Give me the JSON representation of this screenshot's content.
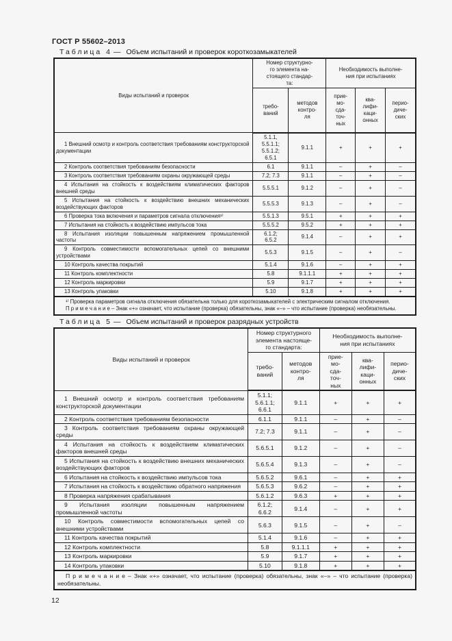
{
  "page": {
    "doc_code": "ГОСТ Р 55602–2013",
    "page_number": "12"
  },
  "table4": {
    "caption": {
      "label": "Таблица 4",
      "dash": "—",
      "title": "Объем испытаний и проверок короткозамыкателей"
    },
    "header": {
      "kinds": "Виды испытаний и проверок",
      "element_group": "Номер структурно-\nго элемента на-\nстоящего стандар-\nта:",
      "necessity_group": "Необходимость выполне-\nния при испытаниях",
      "req": "требо-\nваний",
      "method": "методов\nконтро-\nля",
      "acceptance": "прие-\nмо-\nсда-\nточ-\nных",
      "qualification": "ква-\nлифи-\nкаци-\nонных",
      "periodic": "перио-\nдиче-\nских"
    },
    "rows": [
      {
        "name": "1 Внешний осмотр и контроль соответствия требованиям конструкторской документации",
        "req": "5.1.1,\n5.5.1.1;\n5.5.1.2;\n6.5.1",
        "method": "9.1.1",
        "acc": "+",
        "qual": "+",
        "per": "+"
      },
      {
        "name": "2 Контроль соответствия требованиям безопасности",
        "req": "6.1",
        "method": "9.1.1",
        "acc": "–",
        "qual": "+",
        "per": "–"
      },
      {
        "name": "3 Контроль соответствия требованиям охраны окружающей среды",
        "req": "7.2; 7.3",
        "method": "9.1.1",
        "acc": "–",
        "qual": "+",
        "per": "–"
      },
      {
        "name": "4 Испытания на стойкость к воздействиям климатических факторов внешней среды",
        "req": "5.5.5.1",
        "method": "9.1.2",
        "acc": "–",
        "qual": "+",
        "per": "–"
      },
      {
        "name": "5 Испытания на стойкость к воздействию внешних механических воздействующих факторов",
        "req": "5.5.5.3",
        "method": "9.1.3",
        "acc": "–",
        "qual": "+",
        "per": "–"
      },
      {
        "name": "6 Проверка тока включения и параметров сигнала отключения¹⁾",
        "req": "5.5.1.3",
        "method": "9.5.1",
        "acc": "+",
        "qual": "+",
        "per": "+"
      },
      {
        "name": "7 Испытания на стойкость к воздействию импульсов тока",
        "req": "5.5.5.2",
        "method": "9.5.2",
        "acc": "+",
        "qual": "+",
        "per": "+"
      },
      {
        "name": "8 Испытания изоляции повышенным напряжением промышленной частоты",
        "req": "6.1.2;\n6.5.2",
        "method": "9.1.4",
        "acc": "–",
        "qual": "+",
        "per": "+"
      },
      {
        "name": "9 Контроль совместимости вспомогательных цепей со внешними устройствами",
        "req": "5.5.3",
        "method": "9.1.5",
        "acc": "–",
        "qual": "+",
        "per": "–"
      },
      {
        "name": "10 Контроль качества покрытий",
        "req": "5.1.4",
        "method": "9.1.6",
        "acc": "–",
        "qual": "+",
        "per": "+"
      },
      {
        "name": "11 Контроль комплектности",
        "req": "5.8",
        "method": "9.1.1.1",
        "acc": "+",
        "qual": "+",
        "per": "+"
      },
      {
        "name": "12 Контроль маркировки",
        "req": "5.9",
        "method": "9.1.7",
        "acc": "+",
        "qual": "+",
        "per": "+"
      },
      {
        "name": "13 Контроль упаковки",
        "req": "5.10",
        "method": "9.1.8",
        "acc": "+",
        "qual": "+",
        "per": "+"
      }
    ],
    "footnote": "¹⁾ Проверка параметров сигнала отключения обязательна только для короткозамыкателей с электрическим сигналом отключения.",
    "note": "П р и м е ч а н и е  –  Знак «+» означает, что испытание (проверка) обязательны, знак «–» – что испытание (проверка) необязательны."
  },
  "table5": {
    "caption": {
      "label": "Таблица 5",
      "dash": "—",
      "title": "Объем испытаний и проверок разрядных устройств"
    },
    "header": {
      "kinds": "Виды испытаний и проверок",
      "element_group": "Номер структурного\nэлемента настояще-\nго стандарта:",
      "necessity_group": "Необходимость выполне-\nния при испытаниях",
      "req": "требо-\nваний",
      "method": "методов\nконтро-\nля",
      "acceptance": "прие-\nмо-\nсда-\nточ-\nных",
      "qualification": "ква-\nлифи-\nкаци-\nонных",
      "periodic": "перио-\nдиче-\nских"
    },
    "rows": [
      {
        "name": "1 Внешний осмотр и контроль соответствия требованиям конструкторской документации",
        "req": "5.1.1;\n5.6.1.1;\n6.6.1",
        "method": "9.1.1",
        "acc": "+",
        "qual": "+",
        "per": "+"
      },
      {
        "name": "2 Контроль соответствия требованиям безопасности",
        "req": "6.1.1",
        "method": "9.1.1",
        "acc": "–",
        "qual": "+",
        "per": "–"
      },
      {
        "name": "3 Контроль соответствия требованиям охраны окружающей среды",
        "req": "7.2; 7.3",
        "method": "9.1.1",
        "acc": "–",
        "qual": "+",
        "per": "–"
      },
      {
        "name": "4 Испытания на стойкость к воздействиям климатических факторов внешней среды",
        "req": "5.6.5.1",
        "method": "9.1.2",
        "acc": "–",
        "qual": "+",
        "per": "–"
      },
      {
        "name": "5 Испытания на стойкость к воздействию внешних механических воздействующих факторов",
        "req": "5.6.5.4",
        "method": "9.1.3",
        "acc": "–",
        "qual": "+",
        "per": "–"
      },
      {
        "name": "6 Испытания на стойкость к воздействию импульсов тока",
        "req": "5.6.5.2",
        "method": "9.6.1",
        "acc": "–",
        "qual": "+",
        "per": "+"
      },
      {
        "name": "7 Испытания на стойкость к воздействию обратного напряжения",
        "req": "5.6.5.3",
        "method": "9.6.2",
        "acc": "–",
        "qual": "+",
        "per": "+"
      },
      {
        "name": "8 Проверка напряжения срабатывания",
        "req": "5.6.1.2",
        "method": "9.6.3",
        "acc": "+",
        "qual": "+",
        "per": "+"
      },
      {
        "name": "9 Испытания изоляции повышенным напряжением промышленной частоты",
        "req": "6.1.2;\n6.6.2",
        "method": "9.1.4",
        "acc": "–",
        "qual": "+",
        "per": "+"
      },
      {
        "name": "10 Контроль совместимости вспомогательных цепей со внешними устройствами",
        "req": "5.6.3",
        "method": "9.1.5",
        "acc": "–",
        "qual": "+",
        "per": "–"
      },
      {
        "name": "11 Контроль качества покрытий",
        "req": "5.1.4",
        "method": "9.1.6",
        "acc": "–",
        "qual": "+",
        "per": "+"
      },
      {
        "name": "12 Контроль комплектности",
        "req": "5.8",
        "method": "9.1.1.1",
        "acc": "+",
        "qual": "+",
        "per": "+"
      },
      {
        "name": "13 Контроль маркировки",
        "req": "5.9",
        "method": "9.1.7",
        "acc": "+",
        "qual": "+",
        "per": "+"
      },
      {
        "name": "14 Контроль упаковки",
        "req": "5.10",
        "method": "9.1.8",
        "acc": "+",
        "qual": "+",
        "per": "+"
      }
    ],
    "note": "П р и м е ч а н и е  –  Знак «+» означает, что испытание (проверка) обязательны, знак «–» – что испытание (проверка) необязательны."
  }
}
